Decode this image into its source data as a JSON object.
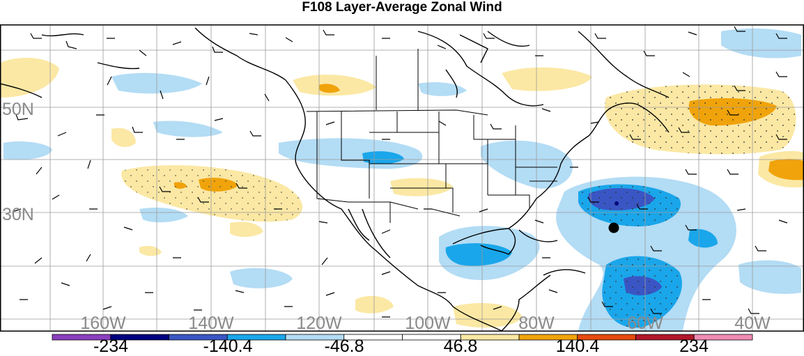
{
  "title": "F108 Layer-Average Zonal Wind",
  "lat_labels": [
    "50N",
    "30N"
  ],
  "lon_labels": [
    "160W",
    "140W",
    "120W",
    "100W",
    "80W",
    "60W",
    "40W"
  ],
  "colorbar": {
    "colors": [
      "#8b3fbf",
      "#000080",
      "#3a56c4",
      "#1aa6ea",
      "#b3dcf5",
      "#ffffff",
      "#ffffff",
      "#fbe8a4",
      "#f0a30a",
      "#e64a0c",
      "#b2172a",
      "#f08cb4"
    ],
    "labels": [
      "-234",
      "-140.4",
      "-46.8",
      "46.8",
      "140.4",
      "234"
    ]
  },
  "marker": {
    "type": "filled-circle",
    "color": "#000000"
  },
  "palette": {
    "grid": "#9a9a9a",
    "coast": "#000000",
    "frame": "#000000"
  }
}
